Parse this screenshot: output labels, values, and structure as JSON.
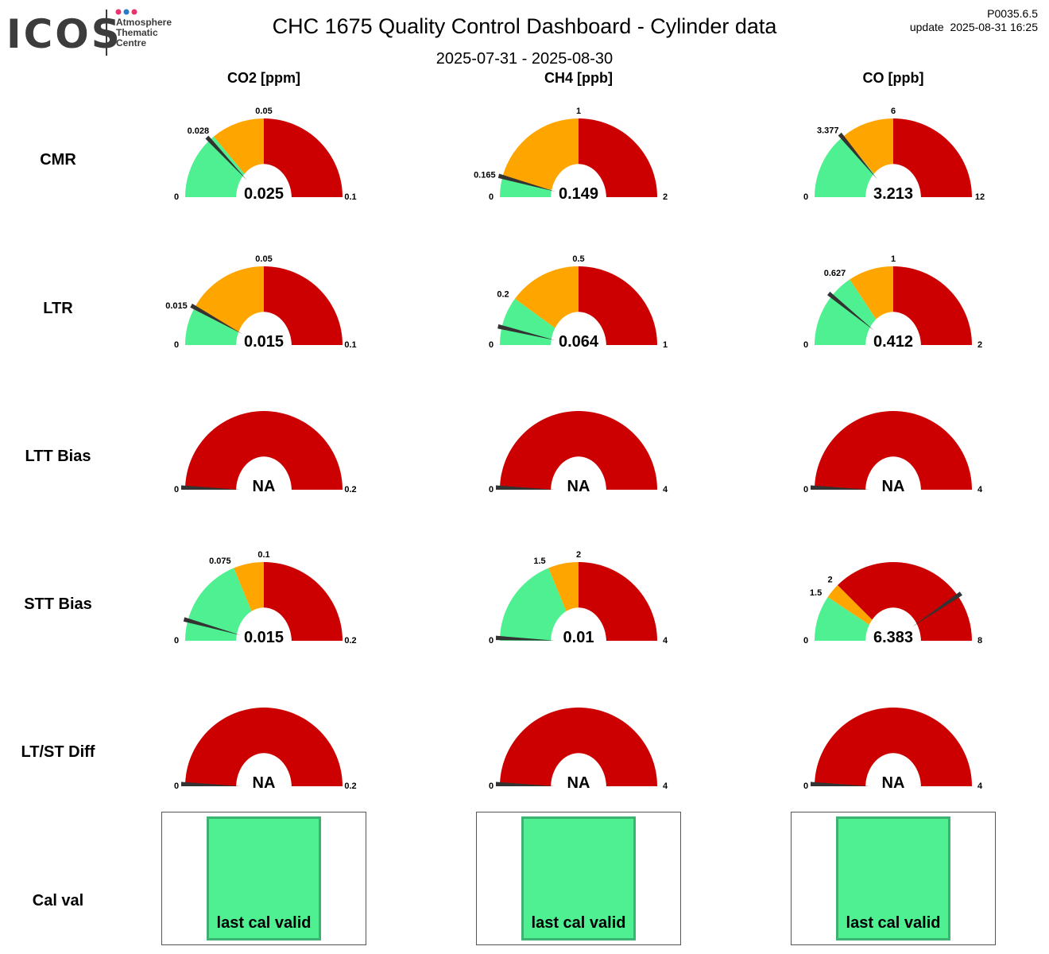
{
  "header": {
    "title": "CHC 1675 Quality Control Dashboard - Cylinder data",
    "date_range": "2025-07-31 - 2025-08-30",
    "version": "P0035.6.5",
    "update": "update  2025-08-31 16:25"
  },
  "logo": {
    "text": "ICOS",
    "subtitle_lines": [
      "Atmosphere",
      "Thematic",
      "Centre"
    ],
    "dot_colors": [
      "#e8336e",
      "#2b79c9",
      "#e8336e"
    ]
  },
  "colors": {
    "green": "#4ef091",
    "orange": "#ffa500",
    "red": "#cc0000",
    "needle": "#333333",
    "cal_green": "#4ef091",
    "cal_border": "#3cb371"
  },
  "columns": [
    "CO2 [ppm]",
    "CH4 [ppb]",
    "CO [ppb]"
  ],
  "rows": [
    "CMR",
    "LTR",
    "LTT Bias",
    "STT Bias",
    "LT/ST Diff",
    "Cal val"
  ],
  "chart_data": [
    {
      "type": "gauge",
      "row": "CMR",
      "column": "CO2 [ppm]",
      "value": 0.025,
      "value_label": "0.025",
      "min": 0,
      "max": 0.1,
      "min_label": "0",
      "max_label": "0.1",
      "green_max": 0.028,
      "green_label": "0.028",
      "orange_max": 0.05,
      "orange_label": "0.05"
    },
    {
      "type": "gauge",
      "row": "CMR",
      "column": "CH4 [ppb]",
      "value": 0.149,
      "value_label": "0.149",
      "min": 0,
      "max": 2,
      "min_label": "0",
      "max_label": "2",
      "green_max": 0.165,
      "green_label": "0.165",
      "orange_max": 1,
      "orange_label": "1"
    },
    {
      "type": "gauge",
      "row": "CMR",
      "column": "CO [ppb]",
      "value": 3.213,
      "value_label": "3.213",
      "min": 0,
      "max": 12,
      "min_label": "0",
      "max_label": "12",
      "green_max": 3.377,
      "green_label": "3.377",
      "orange_max": 6,
      "orange_label": "6"
    },
    {
      "type": "gauge",
      "row": "LTR",
      "column": "CO2 [ppm]",
      "value": 0.015,
      "value_label": "0.015",
      "min": 0,
      "max": 0.1,
      "min_label": "0",
      "max_label": "0.1",
      "green_max": 0.015,
      "green_label": "0.015",
      "orange_max": 0.05,
      "orange_label": "0.05"
    },
    {
      "type": "gauge",
      "row": "LTR",
      "column": "CH4 [ppb]",
      "value": 0.064,
      "value_label": "0.064",
      "min": 0,
      "max": 1,
      "min_label": "0",
      "max_label": "1",
      "green_max": 0.2,
      "green_label": "0.2",
      "orange_max": 0.5,
      "orange_label": "0.5"
    },
    {
      "type": "gauge",
      "row": "LTR",
      "column": "CO [ppb]",
      "value": 0.412,
      "value_label": "0.412",
      "min": 0,
      "max": 2,
      "min_label": "0",
      "max_label": "2",
      "green_max": 0.627,
      "green_label": "0.627",
      "orange_max": 1,
      "orange_label": "1"
    },
    {
      "type": "gauge",
      "row": "LTT Bias",
      "column": "CO2 [ppm]",
      "value": null,
      "value_label": "NA",
      "min": 0,
      "max": 0.2,
      "min_label": "0",
      "max_label": "0.2",
      "green_max": 0,
      "green_label": "0",
      "orange_max": 0,
      "orange_label": "0"
    },
    {
      "type": "gauge",
      "row": "LTT Bias",
      "column": "CH4 [ppb]",
      "value": null,
      "value_label": "NA",
      "min": 0,
      "max": 4,
      "min_label": "0",
      "max_label": "4",
      "green_max": 0,
      "green_label": "0",
      "orange_max": 0,
      "orange_label": "0"
    },
    {
      "type": "gauge",
      "row": "LTT Bias",
      "column": "CO [ppb]",
      "value": null,
      "value_label": "NA",
      "min": 0,
      "max": 4,
      "min_label": "0",
      "max_label": "4",
      "green_max": 0,
      "green_label": "0",
      "orange_max": 0,
      "orange_label": "0"
    },
    {
      "type": "gauge",
      "row": "STT Bias",
      "column": "CO2 [ppm]",
      "value": 0.015,
      "value_label": "0.015",
      "min": 0,
      "max": 0.2,
      "min_label": "0",
      "max_label": "0.2",
      "green_max": 0.075,
      "green_label": "0.075",
      "orange_max": 0.1,
      "orange_label": "0.1"
    },
    {
      "type": "gauge",
      "row": "STT Bias",
      "column": "CH4 [ppb]",
      "value": 0.01,
      "value_label": "0.01",
      "min": 0,
      "max": 4,
      "min_label": "0",
      "max_label": "4",
      "green_max": 1.5,
      "green_label": "1.5",
      "orange_max": 2,
      "orange_label": "2"
    },
    {
      "type": "gauge",
      "row": "STT Bias",
      "column": "CO [ppb]",
      "value": 6.383,
      "value_label": "6.383",
      "min": 0,
      "max": 8,
      "min_label": "0",
      "max_label": "8",
      "green_max": 1.5,
      "green_label": "1.5",
      "orange_max": 2,
      "orange_label": "2"
    },
    {
      "type": "gauge",
      "row": "LT/ST Diff",
      "column": "CO2 [ppm]",
      "value": null,
      "value_label": "NA",
      "min": 0,
      "max": 0.2,
      "min_label": "0",
      "max_label": "0.2",
      "green_max": 0,
      "green_label": "0",
      "orange_max": 0,
      "orange_label": "0"
    },
    {
      "type": "gauge",
      "row": "LT/ST Diff",
      "column": "CH4 [ppb]",
      "value": null,
      "value_label": "NA",
      "min": 0,
      "max": 4,
      "min_label": "0",
      "max_label": "4",
      "green_max": 0,
      "green_label": "0",
      "orange_max": 0,
      "orange_label": "0"
    },
    {
      "type": "gauge",
      "row": "LT/ST Diff",
      "column": "CO [ppb]",
      "value": null,
      "value_label": "NA",
      "min": 0,
      "max": 4,
      "min_label": "0",
      "max_label": "4",
      "green_max": 0,
      "green_label": "0",
      "orange_max": 0,
      "orange_label": "0"
    }
  ],
  "cal_val": [
    {
      "column": "CO2 [ppm]",
      "label": "last cal valid"
    },
    {
      "column": "CH4 [ppb]",
      "label": "last cal valid"
    },
    {
      "column": "CO [ppb]",
      "label": "last cal valid"
    }
  ]
}
